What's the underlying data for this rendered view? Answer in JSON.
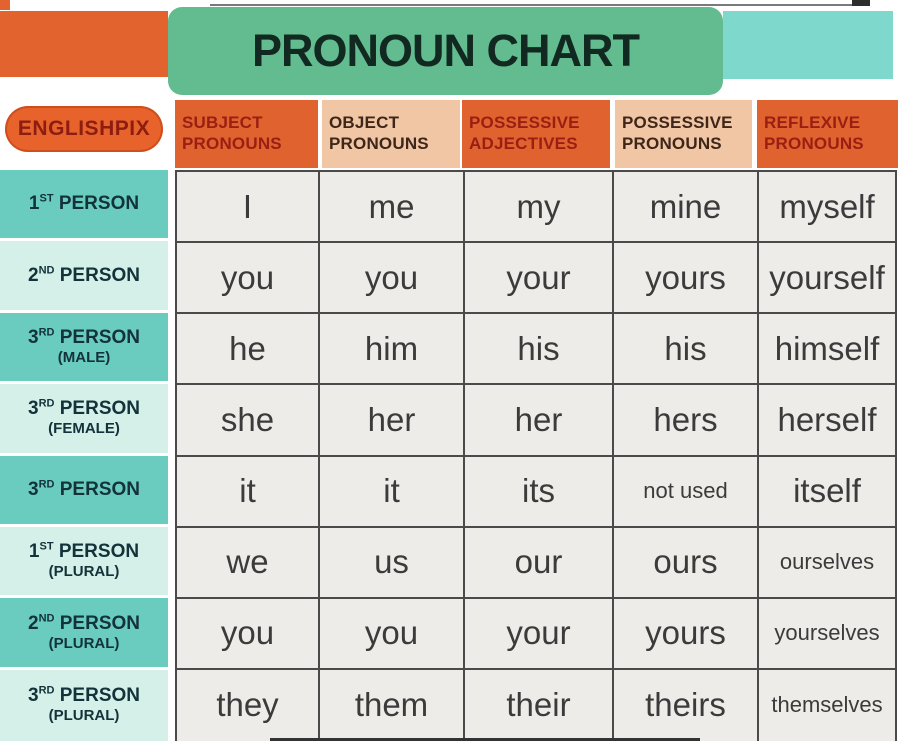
{
  "banner": {
    "title": "PRONOUN CHART"
  },
  "brand": {
    "label": "ENGLISHPIX"
  },
  "header": {
    "columns": [
      {
        "line1": "SUBJECT",
        "line2": "PRONOUNS",
        "style": "orange"
      },
      {
        "line1": "OBJECT",
        "line2": "PRONOUNS",
        "style": "peach"
      },
      {
        "line1": "POSSESSIVE",
        "line2": "ADJECTIVES",
        "style": "orange"
      },
      {
        "line1": "POSSESSIVE",
        "line2": "PRONOUNS",
        "style": "peach"
      },
      {
        "line1": "REFLEXIVE",
        "line2": "PRONOUNS",
        "style": "orange"
      }
    ]
  },
  "table": {
    "rows": [
      {
        "num": "1",
        "ord": "ST",
        "rest": "PERSON",
        "sub": "",
        "shade": "dark",
        "cells": [
          {
            "t": "I"
          },
          {
            "t": "me"
          },
          {
            "t": "my"
          },
          {
            "t": "mine"
          },
          {
            "t": "myself"
          }
        ]
      },
      {
        "num": "2",
        "ord": "ND",
        "rest": "PERSON",
        "sub": "",
        "shade": "light",
        "cells": [
          {
            "t": "you"
          },
          {
            "t": "you"
          },
          {
            "t": "your"
          },
          {
            "t": "yours"
          },
          {
            "t": "yourself"
          }
        ]
      },
      {
        "num": "3",
        "ord": "RD",
        "rest": "PERSON",
        "sub": "(MALE)",
        "shade": "dark",
        "cells": [
          {
            "t": "he"
          },
          {
            "t": "him"
          },
          {
            "t": "his"
          },
          {
            "t": "his"
          },
          {
            "t": "himself"
          }
        ]
      },
      {
        "num": "3",
        "ord": "RD",
        "rest": "PERSON",
        "sub": "(FEMALE)",
        "shade": "light",
        "cells": [
          {
            "t": "she"
          },
          {
            "t": "her"
          },
          {
            "t": "her"
          },
          {
            "t": "hers"
          },
          {
            "t": "herself"
          }
        ]
      },
      {
        "num": "3",
        "ord": "RD",
        "rest": "PERSON",
        "sub": "",
        "shade": "dark",
        "cells": [
          {
            "t": "it"
          },
          {
            "t": "it"
          },
          {
            "t": "its"
          },
          {
            "t": "not used",
            "small": true
          },
          {
            "t": "itself"
          }
        ]
      },
      {
        "num": "1",
        "ord": "ST",
        "rest": "PERSON",
        "sub": "(PLURAL)",
        "shade": "light",
        "cells": [
          {
            "t": "we"
          },
          {
            "t": "us"
          },
          {
            "t": "our"
          },
          {
            "t": "ours"
          },
          {
            "t": "ourselves",
            "small": true
          }
        ]
      },
      {
        "num": "2",
        "ord": "ND",
        "rest": "PERSON",
        "sub": "(PLURAL)",
        "shade": "dark",
        "cells": [
          {
            "t": "you"
          },
          {
            "t": "you"
          },
          {
            "t": "your"
          },
          {
            "t": "yours"
          },
          {
            "t": "yourselves",
            "small": true
          }
        ]
      },
      {
        "num": "3",
        "ord": "RD",
        "rest": "PERSON",
        "sub": "(PLURAL)",
        "shade": "light",
        "cells": [
          {
            "t": "they"
          },
          {
            "t": "them"
          },
          {
            "t": "their"
          },
          {
            "t": "theirs"
          },
          {
            "t": "themselves",
            "small": true
          }
        ]
      }
    ]
  },
  "colors": {
    "orange": "#e2632d",
    "header_orange": "#e0622e",
    "header_orange_text": "#9a1f12",
    "peach": "#f0c6a5",
    "peach_text": "#3f2619",
    "title_green": "#63bb90",
    "title_text": "#112920",
    "teal_bar": "#7ed9cc",
    "row_teal_dark": "#69ccbf",
    "row_teal_light": "#d4f0e8",
    "label_text": "#13323a",
    "cell_bg": "#edece8",
    "grid_border": "#4a4a4a",
    "cell_text": "#3b3b3b",
    "pill_text": "#8c1d10"
  },
  "chart_data": {
    "type": "table",
    "title": "PRONOUN CHART",
    "columns": [
      "",
      "SUBJECT PRONOUNS",
      "OBJECT PRONOUNS",
      "POSSESSIVE ADJECTIVES",
      "POSSESSIVE PRONOUNS",
      "REFLEXIVE PRONOUNS"
    ],
    "rows": [
      [
        "1ST PERSON",
        "I",
        "me",
        "my",
        "mine",
        "myself"
      ],
      [
        "2ND PERSON",
        "you",
        "you",
        "your",
        "yours",
        "yourself"
      ],
      [
        "3RD PERSON (MALE)",
        "he",
        "him",
        "his",
        "his",
        "himself"
      ],
      [
        "3RD PERSON (FEMALE)",
        "she",
        "her",
        "her",
        "hers",
        "herself"
      ],
      [
        "3RD PERSON",
        "it",
        "it",
        "its",
        "not used",
        "itself"
      ],
      [
        "1ST PERSON (PLURAL)",
        "we",
        "us",
        "our",
        "ours",
        "ourselves"
      ],
      [
        "2ND PERSON (PLURAL)",
        "you",
        "you",
        "your",
        "yours",
        "yourselves"
      ],
      [
        "3RD PERSON (PLURAL)",
        "they",
        "them",
        "their",
        "theirs",
        "themselves"
      ]
    ],
    "layout": {
      "grid": "on",
      "header_row": true,
      "row_label_column": true
    }
  }
}
